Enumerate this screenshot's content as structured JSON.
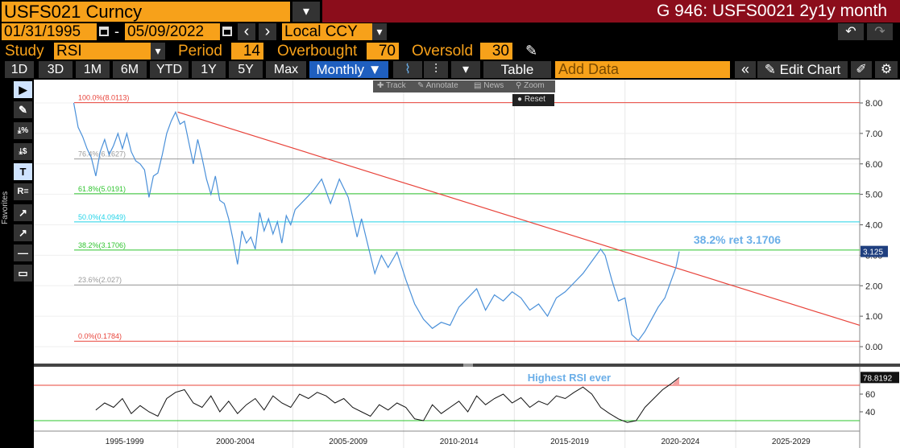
{
  "header": {
    "ticker": "USFS021 Curncy",
    "menu_icon": "▾",
    "title": "G 946: USFS0021 2y1y month"
  },
  "dates": {
    "start": "01/31/1995",
    "dash": "-",
    "end": "05/09/2022",
    "prev_icon": "‹",
    "next_icon": "›",
    "currency": "Local CCY",
    "currency_dropdown_icon": "▾",
    "undo_icon": "↶",
    "redo_icon": "↷"
  },
  "study": {
    "study_label": "Study",
    "study_value": "RSI",
    "study_dropdown_icon": "▾",
    "period_label": "Period",
    "period_value": "14",
    "overbought_label": "Overbought",
    "overbought_value": "70",
    "oversold_label": "Oversold",
    "oversold_value": "30",
    "pencil_icon": "✎"
  },
  "toolbar": {
    "ranges": [
      "1D",
      "3D",
      "1M",
      "6M",
      "YTD",
      "1Y",
      "5Y",
      "Max"
    ],
    "frequency": "Monthly ▼",
    "line_icon": "⌇",
    "bar_icon": "⫶",
    "more_icon": "▾",
    "table_label": "Table",
    "add_data_placeholder": "Add Data",
    "collapse_icon": "«",
    "edit_chart_label": "✎ Edit Chart",
    "edit_icon": "✐",
    "settings_icon": "⚙"
  },
  "floating_toolbar": {
    "track": "✚ Track",
    "annotate": "✎ Annotate",
    "news": "▤ News",
    "zoom": "⚲ Zoom",
    "reset": "● Reset"
  },
  "left_tools": [
    "▶",
    "✎",
    "⤓%",
    "⤓$",
    "T",
    "R≡",
    "↗",
    "↗",
    "—",
    "▭"
  ],
  "left_tools_label": "Favorites",
  "colors": {
    "orange": "#f7a11a",
    "title_red": "#8b0d1b",
    "price_line": "#4a90d9",
    "trend_line": "#e8433a",
    "fib_red": "#e8433a",
    "fib_green": "#2ec42e",
    "fib_cyan": "#22d3e8",
    "fib_gray": "#999999",
    "annotation_blue": "#6aaee8"
  },
  "chart_data": [
    {
      "type": "line",
      "title": "",
      "xlabel": "",
      "ylabel": "",
      "ylim": [
        -0.5,
        8.3
      ],
      "yticks": [
        "8.00",
        "7.00",
        "6.00",
        "5.00",
        "4.00",
        "3.00",
        "2.00",
        "1.00",
        "0.00"
      ],
      "x_period_labels": [
        "1995-1999",
        "2000-2004",
        "2005-2009",
        "2010-2014",
        "2015-2019",
        "2020-2024",
        "2025-2029"
      ],
      "last_value_label": "3.125",
      "series": [
        {
          "x": [
            1995.0,
            1995.2,
            1995.4,
            1995.6,
            1995.8,
            1996.0,
            1996.2,
            1996.4,
            1996.6,
            1996.8,
            1997.0,
            1997.2,
            1997.4,
            1997.6,
            1997.8,
            1998.0,
            1998.2,
            1998.4,
            1998.6,
            1998.8,
            1999.0,
            1999.2,
            1999.4,
            1999.6,
            1999.8,
            2000.0,
            2000.2,
            2000.4,
            2000.6,
            2000.8,
            2001.0,
            2001.2,
            2001.4,
            2001.6,
            2001.8,
            2002.0,
            2002.2,
            2002.4,
            2002.6,
            2002.8,
            2003.0,
            2003.2,
            2003.4,
            2003.6,
            2003.8,
            2004.0,
            2004.2,
            2004.4,
            2004.6,
            2004.8,
            2005.0,
            2005.4,
            2005.8,
            2006.2,
            2006.6,
            2007.0,
            2007.4,
            2007.8,
            2008.0,
            2008.3,
            2008.6,
            2008.9,
            2009.2,
            2009.6,
            2010.0,
            2010.4,
            2010.8,
            2011.2,
            2011.6,
            2012.0,
            2012.4,
            2012.8,
            2013.2,
            2013.6,
            2014.0,
            2014.4,
            2014.8,
            2015.2,
            2015.6,
            2016.0,
            2016.4,
            2016.8,
            2017.2,
            2017.6,
            2018.0,
            2018.4,
            2018.8,
            2019.0,
            2019.3,
            2019.6,
            2019.9,
            2020.2,
            2020.5,
            2020.8,
            2021.1,
            2021.4,
            2021.7,
            2022.0,
            2022.2,
            2022.35
          ],
          "values": [
            8.0,
            7.2,
            6.9,
            6.5,
            6.2,
            5.6,
            6.4,
            6.8,
            6.3,
            6.6,
            7.0,
            6.5,
            7.0,
            6.4,
            6.1,
            6.0,
            5.8,
            4.9,
            5.6,
            5.7,
            6.3,
            7.0,
            7.4,
            7.7,
            7.3,
            7.4,
            6.7,
            6.0,
            6.8,
            6.2,
            5.5,
            5.0,
            5.6,
            4.8,
            4.7,
            4.2,
            3.5,
            2.7,
            3.8,
            3.4,
            3.6,
            3.2,
            4.4,
            3.8,
            4.2,
            3.7,
            4.1,
            3.4,
            4.3,
            4.0,
            4.5,
            4.8,
            5.1,
            5.5,
            4.7,
            5.5,
            4.9,
            3.6,
            4.2,
            3.3,
            2.4,
            3.0,
            2.6,
            3.1,
            2.2,
            1.4,
            0.9,
            0.6,
            0.8,
            0.7,
            1.3,
            1.6,
            1.9,
            1.2,
            1.7,
            1.5,
            1.8,
            1.6,
            1.2,
            1.4,
            1.0,
            1.6,
            1.8,
            2.1,
            2.4,
            2.8,
            3.2,
            3.0,
            2.2,
            1.5,
            1.6,
            0.4,
            0.2,
            0.5,
            0.9,
            1.3,
            1.6,
            2.2,
            2.6,
            3.125
          ],
          "name": ""
        }
      ],
      "trendline": {
        "x": [
          1999.7,
          2030.5
        ],
        "values": [
          7.7,
          0.7
        ]
      },
      "fib_levels": [
        {
          "label": "100.0%(8.0113)",
          "value": 8.0113,
          "color": "#e8433a"
        },
        {
          "label": "76.4%(6.1627)",
          "value": 6.1627,
          "color": "#999999"
        },
        {
          "label": "61.8%(5.0191)",
          "value": 5.0191,
          "color": "#2ec42e"
        },
        {
          "label": "50.0%(4.0949)",
          "value": 4.0949,
          "color": "#22d3e8"
        },
        {
          "label": "38.2%(3.1706)",
          "value": 3.1706,
          "color": "#2ec42e"
        },
        {
          "label": "23.6%(2.027)",
          "value": 2.027,
          "color": "#999999"
        },
        {
          "label": "0.0%(0.1784)",
          "value": 0.1784,
          "color": "#e8433a"
        }
      ],
      "annotation": "38.2% ret 3.1706"
    },
    {
      "type": "line",
      "title": "",
      "ylim": [
        25,
        90
      ],
      "yticks": [
        "60",
        "40"
      ],
      "last_value_label": "78.8192",
      "overbought": 70,
      "oversold": 30,
      "annotation": "Highest RSI ever",
      "series": [
        {
          "x": [
            1996.0,
            1996.4,
            1996.8,
            1997.2,
            1997.6,
            1998.0,
            1998.4,
            1998.8,
            1999.2,
            1999.6,
            2000.0,
            2000.4,
            2000.8,
            2001.2,
            2001.6,
            2002.0,
            2002.4,
            2002.8,
            2003.2,
            2003.6,
            2004.0,
            2004.4,
            2004.8,
            2005.2,
            2005.6,
            2006.0,
            2006.4,
            2006.8,
            2007.2,
            2007.6,
            2008.0,
            2008.4,
            2008.8,
            2009.2,
            2009.6,
            2010.0,
            2010.4,
            2010.8,
            2011.2,
            2011.6,
            2012.0,
            2012.4,
            2012.8,
            2013.2,
            2013.6,
            2014.0,
            2014.4,
            2014.8,
            2015.2,
            2015.6,
            2016.0,
            2016.4,
            2016.8,
            2017.2,
            2017.6,
            2018.0,
            2018.4,
            2018.8,
            2019.2,
            2019.6,
            2020.0,
            2020.4,
            2020.8,
            2021.2,
            2021.6,
            2022.0,
            2022.35
          ],
          "values": [
            42,
            50,
            45,
            55,
            38,
            47,
            40,
            35,
            55,
            62,
            65,
            50,
            45,
            58,
            40,
            52,
            38,
            48,
            55,
            42,
            58,
            50,
            45,
            60,
            55,
            62,
            58,
            50,
            55,
            45,
            40,
            35,
            48,
            42,
            50,
            45,
            32,
            30,
            48,
            38,
            45,
            52,
            40,
            58,
            48,
            55,
            60,
            50,
            56,
            45,
            52,
            48,
            58,
            55,
            62,
            68,
            60,
            45,
            38,
            32,
            28,
            30,
            45,
            55,
            65,
            72,
            78.8
          ],
          "name": ""
        }
      ]
    }
  ]
}
